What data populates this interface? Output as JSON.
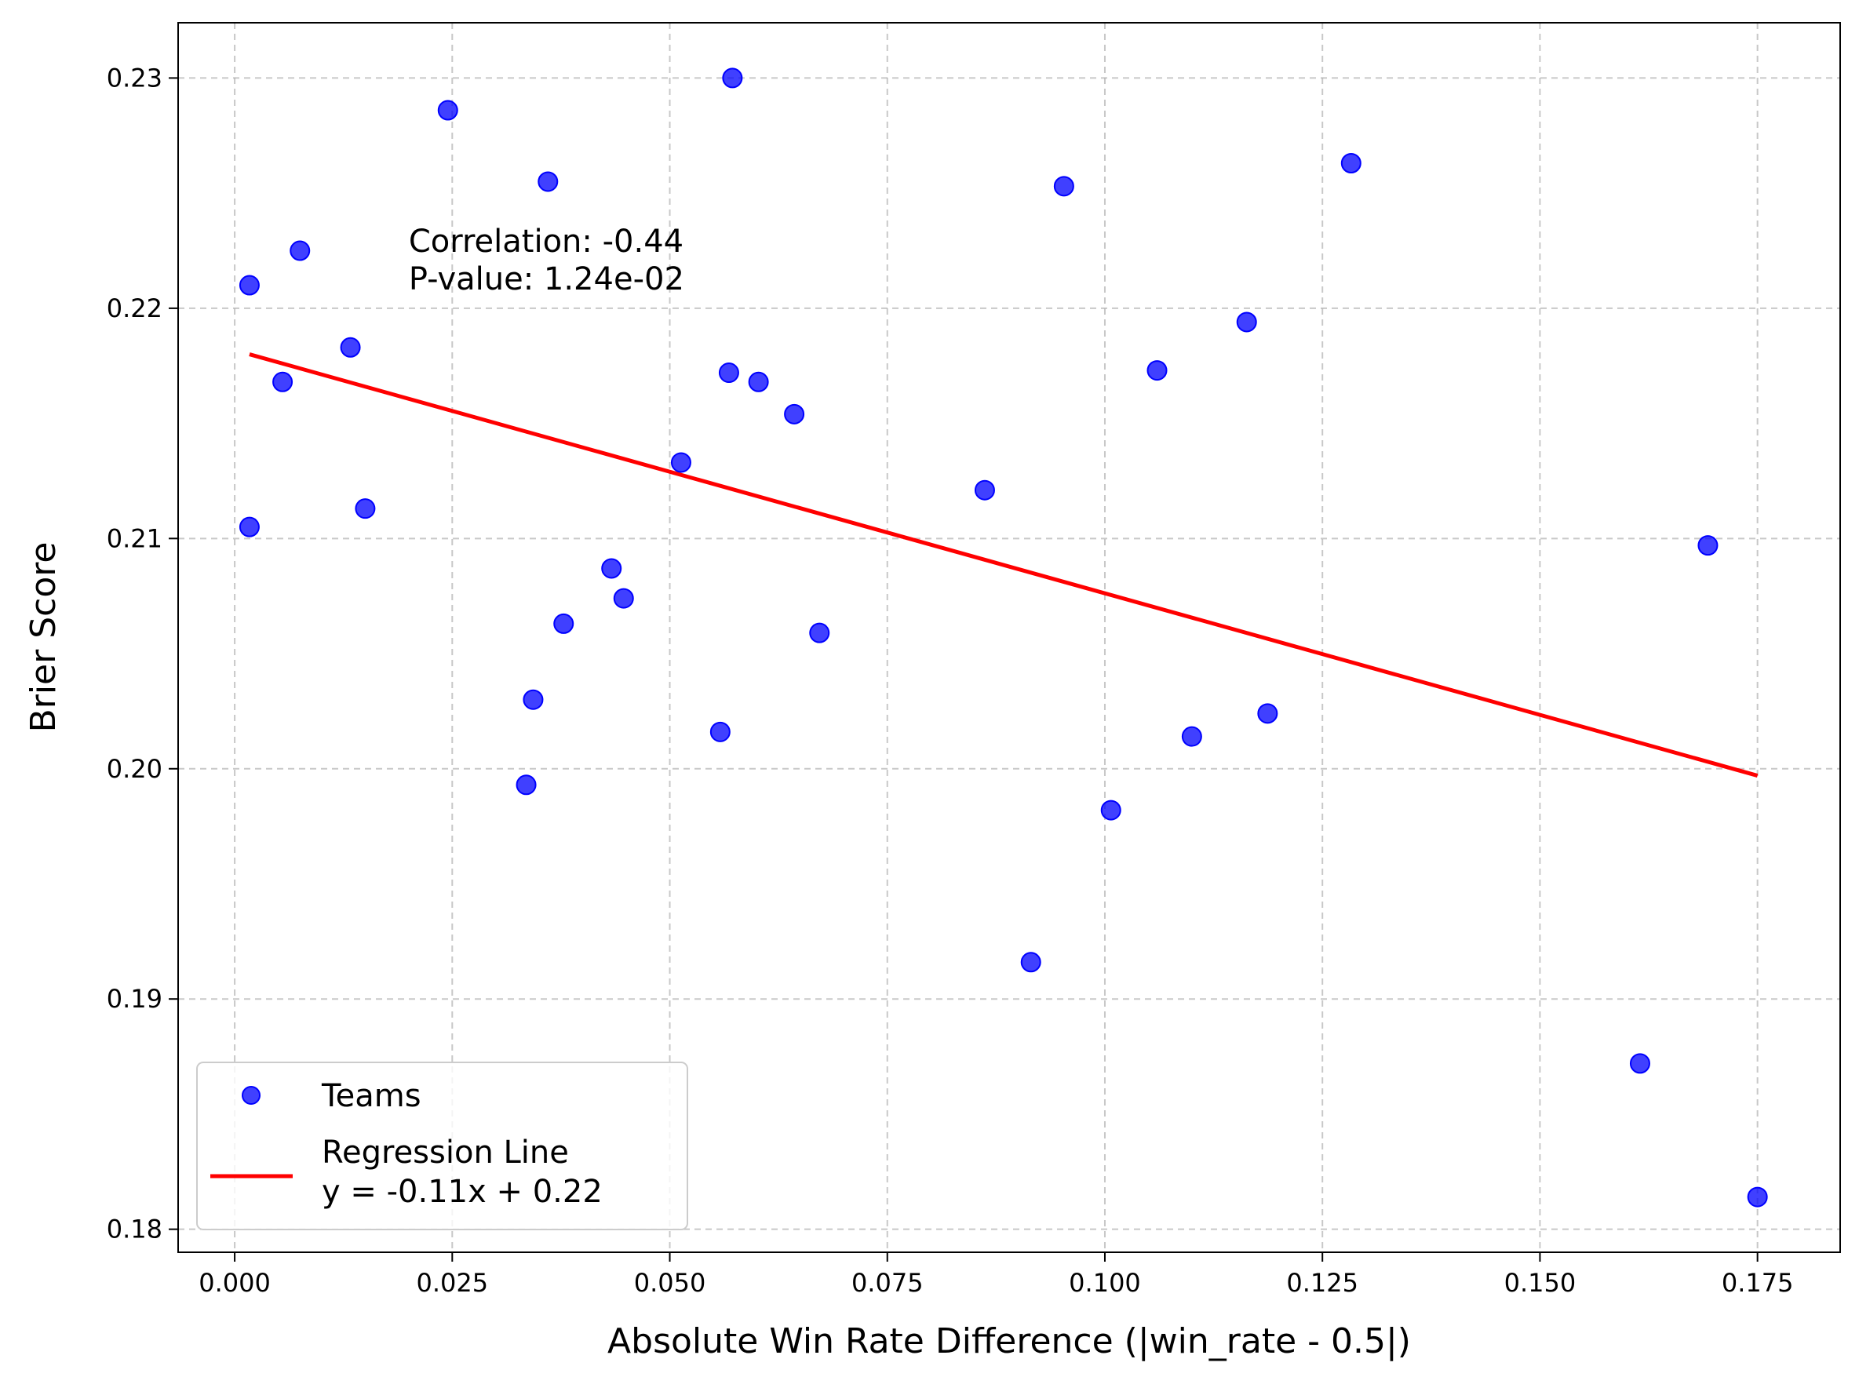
{
  "chart_data": {
    "type": "scatter",
    "xlabel": "Absolute Win Rate Difference (|win_rate - 0.5|)",
    "ylabel": "Brier Score",
    "xlim": [
      -0.0065,
      0.1845
    ],
    "ylim": [
      0.179,
      0.2324
    ],
    "x_ticks": [
      0.0,
      0.025,
      0.05,
      0.075,
      0.1,
      0.125,
      0.15,
      0.175
    ],
    "x_tick_labels": [
      "0.000",
      "0.025",
      "0.050",
      "0.075",
      "0.100",
      "0.125",
      "0.150",
      "0.175"
    ],
    "y_ticks": [
      0.18,
      0.19,
      0.2,
      0.21,
      0.22,
      0.23
    ],
    "y_tick_labels": [
      "0.18",
      "0.19",
      "0.20",
      "0.21",
      "0.22",
      "0.23"
    ],
    "grid": true,
    "legend_position": "lower-left",
    "annotation": {
      "lines": [
        "Correlation: -0.44",
        "P-value: 1.24e-02"
      ],
      "x": 0.02,
      "y": 0.2221
    },
    "series": [
      {
        "name": "Teams",
        "kind": "scatter",
        "color": "#0000ff",
        "points": [
          {
            "x": 0.0017,
            "y": 0.221
          },
          {
            "x": 0.0017,
            "y": 0.2105
          },
          {
            "x": 0.0055,
            "y": 0.2168
          },
          {
            "x": 0.0075,
            "y": 0.2225
          },
          {
            "x": 0.0133,
            "y": 0.2183
          },
          {
            "x": 0.015,
            "y": 0.2113
          },
          {
            "x": 0.0245,
            "y": 0.2286
          },
          {
            "x": 0.0335,
            "y": 0.1993
          },
          {
            "x": 0.0343,
            "y": 0.203
          },
          {
            "x": 0.036,
            "y": 0.2255
          },
          {
            "x": 0.0378,
            "y": 0.2063
          },
          {
            "x": 0.0433,
            "y": 0.2087
          },
          {
            "x": 0.0447,
            "y": 0.2074
          },
          {
            "x": 0.0513,
            "y": 0.2133
          },
          {
            "x": 0.0558,
            "y": 0.2016
          },
          {
            "x": 0.0568,
            "y": 0.2172
          },
          {
            "x": 0.0572,
            "y": 0.23
          },
          {
            "x": 0.0602,
            "y": 0.2168
          },
          {
            "x": 0.0643,
            "y": 0.2154
          },
          {
            "x": 0.0672,
            "y": 0.2059
          },
          {
            "x": 0.0862,
            "y": 0.2121
          },
          {
            "x": 0.0915,
            "y": 0.1916
          },
          {
            "x": 0.0953,
            "y": 0.2253
          },
          {
            "x": 0.1007,
            "y": 0.1982
          },
          {
            "x": 0.106,
            "y": 0.2173
          },
          {
            "x": 0.11,
            "y": 0.2014
          },
          {
            "x": 0.1163,
            "y": 0.2194
          },
          {
            "x": 0.1187,
            "y": 0.2024
          },
          {
            "x": 0.1283,
            "y": 0.2263
          },
          {
            "x": 0.1615,
            "y": 0.1872
          },
          {
            "x": 0.1693,
            "y": 0.2097
          },
          {
            "x": 0.175,
            "y": 0.1814
          }
        ]
      },
      {
        "name": "Regression Line\ny = -0.11x + 0.22",
        "kind": "line",
        "color": "#ff0000",
        "points": [
          {
            "x": 0.0017,
            "y": 0.218
          },
          {
            "x": 0.175,
            "y": 0.1997
          }
        ]
      }
    ],
    "legend": {
      "items": [
        {
          "label": "Teams",
          "marker": "circle",
          "color": "#0000ff"
        },
        {
          "label_lines": [
            "Regression Line",
            "y = -0.11x + 0.22"
          ],
          "marker": "line",
          "color": "#ff0000"
        }
      ]
    }
  }
}
